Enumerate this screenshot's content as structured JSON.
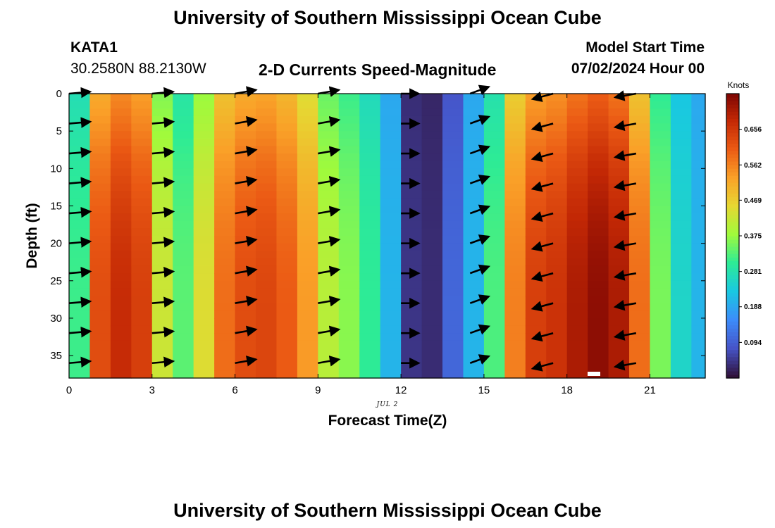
{
  "header": {
    "title": "University of Southern Mississippi Ocean Cube",
    "station": "KATA1",
    "coords": "30.2580N  88.2130W",
    "subtitle": "2-D Currents Speed-Magnitude",
    "model_start_label": "Model Start Time",
    "model_start_value": "07/02/2024 Hour 00"
  },
  "footer": {
    "title": "University of Southern Mississippi Ocean Cube"
  },
  "chart_data": {
    "type": "heatmap",
    "xlabel": "Forecast Time(Z)",
    "ylabel": "Depth (ft)",
    "date_label": "JUL 2",
    "x_ticks": [
      0,
      3,
      6,
      9,
      12,
      15,
      18,
      21
    ],
    "y_ticks": [
      0,
      5,
      10,
      15,
      20,
      25,
      30,
      35
    ],
    "xlim": [
      0,
      23
    ],
    "ylim": [
      38,
      0
    ],
    "colorbar": {
      "title": "Knots",
      "ticks": [
        "0.656",
        "0.562",
        "0.469",
        "0.375",
        "0.281",
        "0.188",
        "0.094"
      ],
      "tick_values": [
        0.656,
        0.562,
        0.469,
        0.375,
        0.281,
        0.188,
        0.094
      ],
      "range": [
        0.0,
        0.75
      ]
    },
    "depth_profile_peak_fraction": [
      0.5,
      0.62,
      0.75,
      0.84,
      0.91,
      0.96,
      0.99,
      1.0,
      1.0,
      1.0
    ],
    "hours": [
      0,
      0.75,
      1.5,
      2.25,
      3,
      3.75,
      4.5,
      5.25,
      6,
      6.75,
      7.5,
      8.25,
      9,
      9.75,
      10.5,
      11.25,
      12,
      12.75,
      13.5,
      14.25,
      15,
      15.75,
      16.5,
      17.25,
      18,
      18.75,
      19.5,
      20.25,
      21,
      21.75,
      22.5
    ],
    "bottom_speed_knots": [
      0.31,
      0.62,
      0.67,
      0.64,
      0.42,
      0.33,
      0.44,
      0.58,
      0.62,
      0.63,
      0.6,
      0.53,
      0.4,
      0.36,
      0.3,
      0.2,
      0.04,
      0.03,
      0.1,
      0.2,
      0.32,
      0.56,
      0.64,
      0.66,
      0.7,
      0.73,
      0.7,
      0.58,
      0.35,
      0.25,
      0.2
    ],
    "arrow_times": [
      0,
      3,
      6,
      9,
      12,
      14.5,
      17.5,
      20.5
    ],
    "arrow_depths": [
      0,
      4,
      8,
      12,
      16,
      20,
      24,
      28,
      32,
      36
    ],
    "arrow_direction_deg": [
      5,
      5,
      10,
      10,
      0,
      20,
      195,
      190
    ],
    "arrow_length_knots": [
      0.3,
      0.3,
      0.3,
      0.3,
      0.25,
      0.28,
      0.3,
      0.3
    ]
  }
}
